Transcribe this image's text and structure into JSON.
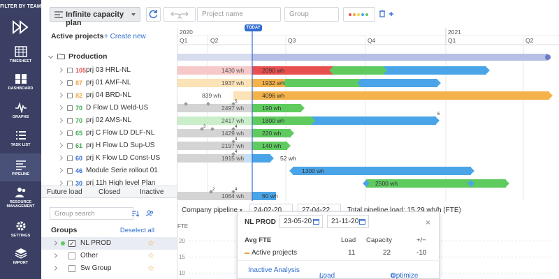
{
  "sidebar": {
    "filter_label": "FILTER BY TEAM",
    "items": [
      {
        "label": "TIMESHEET",
        "icon": "timesheet-icon"
      },
      {
        "label": "DASHBOARD",
        "icon": "dashboard-icon"
      },
      {
        "label": "GRAPHS",
        "icon": "graph-icon"
      },
      {
        "label": "TASK LIST",
        "icon": "list-icon"
      },
      {
        "label": "PIPELINE",
        "icon": "pipeline-icon",
        "active": true
      },
      {
        "label": "RESOURCE MANAGEMENT",
        "icon": "people-icon"
      },
      {
        "label": "SETTINGS",
        "icon": "gear-icon"
      },
      {
        "label": "IMPORT",
        "icon": "layers-icon"
      }
    ]
  },
  "toolbar": {
    "plan_select": "Infinite capacity plan",
    "project_placeholder": "Project name",
    "group_placeholder": "Group",
    "color_dots": [
      "#e8504f",
      "#f0a640",
      "#f5d445",
      "#4aa5e8",
      "#62c767"
    ]
  },
  "projects": {
    "header": "Active projects",
    "create_label": "+ Create new",
    "folder": "Production",
    "rows": [
      {
        "num": "105",
        "num_color": "#e8504f",
        "name": "prj 03 HRL-NL"
      },
      {
        "num": "87",
        "num_color": "#f0a640",
        "name": "prj 01 AMF-NL"
      },
      {
        "num": "82",
        "num_color": "#f0a640",
        "name": "prj 04 BRD-NL"
      },
      {
        "num": "70",
        "num_color": "#3aa84a",
        "name": "D Flow LD Weld-US"
      },
      {
        "num": "70",
        "num_color": "#3aa84a",
        "name": "prj 02 AMS-NL"
      },
      {
        "num": "65",
        "num_color": "#3aa84a",
        "name": "prj C Flow LD DLF-NL"
      },
      {
        "num": "61",
        "num_color": "#3aa84a",
        "name": "prj H Flow LD Sup-US"
      },
      {
        "num": "60",
        "num_color": "#2f6dd0",
        "name": "prj K Flow LD Const-US"
      },
      {
        "num": "46",
        "num_color": "#2f6dd0",
        "name": "Module Serie rollout 01"
      },
      {
        "num": "30",
        "num_color": "#2f6dd0",
        "name": "prj 11h High level Plan"
      }
    ]
  },
  "timeline": {
    "years": [
      "2020",
      "2021"
    ],
    "quarters": [
      "Q1",
      "Q2",
      "Q3",
      "Q4",
      "Q1",
      "Q2"
    ],
    "today_label": "TODAY",
    "rows": [
      {
        "left_label": "1430 wh",
        "bar_label": "2090 wh"
      },
      {
        "left_label": "1937 wh",
        "bar_label": "1932 wh"
      },
      {
        "left_label": "839 wh",
        "bar_label": "4096 wh"
      },
      {
        "left_label": "2497 wh",
        "bar_label": "190 wh"
      },
      {
        "left_label": "2417 wh",
        "bar_label": "1800 wh"
      },
      {
        "left_label": "1429 wh",
        "bar_label": "220 wh"
      },
      {
        "left_label": "2197 wh",
        "bar_label": "140 wh"
      },
      {
        "left_label": "1915 wh",
        "bar_label": "52 wh"
      },
      {
        "left_label": "",
        "bar_label": "1300 wh"
      },
      {
        "left_label": "",
        "bar_label": "2500 wh"
      },
      {
        "left_label": "1064 wh",
        "bar_label": "60 wh"
      }
    ],
    "marker_numbers": [
      "5",
      "6",
      "3",
      "4",
      "4",
      "4",
      "2",
      "4"
    ]
  },
  "tabs": [
    "Future load",
    "Closed",
    "Inactive"
  ],
  "groups": {
    "search_placeholder": "Group search",
    "title": "Groups",
    "deselect_label": "Deselect all",
    "items": [
      {
        "name": "NL PROD",
        "checked": true
      },
      {
        "name": "Other",
        "checked": false
      },
      {
        "name": "Sw Group",
        "checked": false
      }
    ]
  },
  "lower": {
    "pipeline_select": "Company pipeline",
    "date_from": "24-02-20",
    "date_to": "27-04-22",
    "summary": "Total pipeline load: 15.29 wh/h (FTE)",
    "y_label": "FTE",
    "y_ticks": [
      "20",
      "15",
      "10"
    ]
  },
  "popup": {
    "name": "NL PROD",
    "date_from": "23-05-20",
    "date_to": "21-11-20",
    "close": "×",
    "col_label": "Avg FTE",
    "col_load": "Load",
    "col_capacity": "Capacity",
    "col_diff": "+/−",
    "row_label": "Active projects",
    "row_load": "11",
    "row_capacity": "22",
    "row_diff": "-10",
    "footer": [
      "Inactive Analysis",
      "Load Analysis",
      "Optimize"
    ]
  }
}
